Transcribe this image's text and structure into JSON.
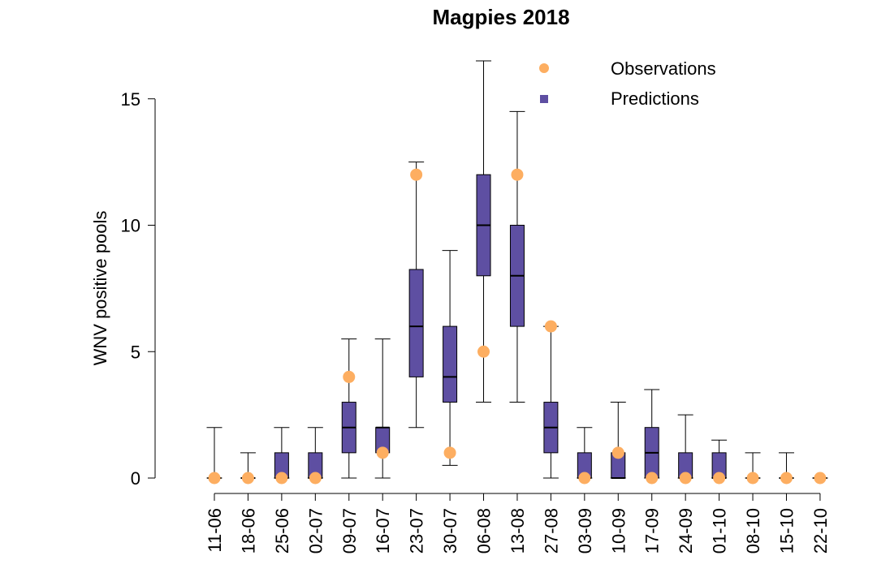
{
  "chart_data": {
    "type": "box",
    "title": "Magpies 2018",
    "xlabel": "",
    "ylabel": "WNV positive pools",
    "ylim": [
      0,
      16.5
    ],
    "yticks": [
      0,
      5,
      10,
      15
    ],
    "colors": {
      "prediction": "#5e4fa2",
      "observation": "#fdae61"
    },
    "legend": {
      "position": "top-right",
      "items": [
        {
          "label": "Observations",
          "marker": "circle",
          "color": "#fdae61"
        },
        {
          "label": "Predictions",
          "marker": "square",
          "color": "#5e4fa2"
        }
      ]
    },
    "categories": [
      "11-06",
      "18-06",
      "25-06",
      "02-07",
      "09-07",
      "16-07",
      "23-07",
      "30-07",
      "06-08",
      "13-08",
      "27-08",
      "03-09",
      "10-09",
      "17-09",
      "24-09",
      "01-10",
      "08-10",
      "15-10",
      "22-10"
    ],
    "predictions": [
      {
        "min": 0,
        "q1": 0,
        "median": 0,
        "q3": 0,
        "max": 2
      },
      {
        "min": 0,
        "q1": 0,
        "median": 0,
        "q3": 0,
        "max": 1
      },
      {
        "min": 0,
        "q1": 0,
        "median": 0,
        "q3": 1,
        "max": 2
      },
      {
        "min": 0,
        "q1": 0,
        "median": 0,
        "q3": 1,
        "max": 2
      },
      {
        "min": 0,
        "q1": 1,
        "median": 2,
        "q3": 3,
        "max": 5.5
      },
      {
        "min": 0,
        "q1": 1,
        "median": 2,
        "q3": 2,
        "max": 5.5
      },
      {
        "min": 2,
        "q1": 4,
        "median": 6,
        "q3": 8.25,
        "max": 12.5
      },
      {
        "min": 0.5,
        "q1": 3,
        "median": 4,
        "q3": 6,
        "max": 9
      },
      {
        "min": 3,
        "q1": 8,
        "median": 10,
        "q3": 12,
        "max": 16.5
      },
      {
        "min": 3,
        "q1": 6,
        "median": 8,
        "q3": 10,
        "max": 14.5
      },
      {
        "min": 0,
        "q1": 1,
        "median": 2,
        "q3": 3,
        "max": 6
      },
      {
        "min": 0,
        "q1": 0,
        "median": 0,
        "q3": 1,
        "max": 2
      },
      {
        "min": 0,
        "q1": 0,
        "median": 0,
        "q3": 1,
        "max": 3
      },
      {
        "min": 0,
        "q1": 0,
        "median": 1,
        "q3": 2,
        "max": 3.5
      },
      {
        "min": 0,
        "q1": 0,
        "median": 0,
        "q3": 1,
        "max": 2.5
      },
      {
        "min": 0,
        "q1": 0,
        "median": 0,
        "q3": 1,
        "max": 1.5
      },
      {
        "min": 0,
        "q1": 0,
        "median": 0,
        "q3": 0,
        "max": 1
      },
      {
        "min": 0,
        "q1": 0,
        "median": 0,
        "q3": 0,
        "max": 1
      },
      {
        "min": 0,
        "q1": 0,
        "median": 0,
        "q3": 0,
        "max": 0
      }
    ],
    "observations": [
      0,
      0,
      0,
      0,
      4,
      1,
      12,
      1,
      5,
      12,
      6,
      0,
      1,
      0,
      0,
      0,
      0,
      0,
      0
    ]
  }
}
